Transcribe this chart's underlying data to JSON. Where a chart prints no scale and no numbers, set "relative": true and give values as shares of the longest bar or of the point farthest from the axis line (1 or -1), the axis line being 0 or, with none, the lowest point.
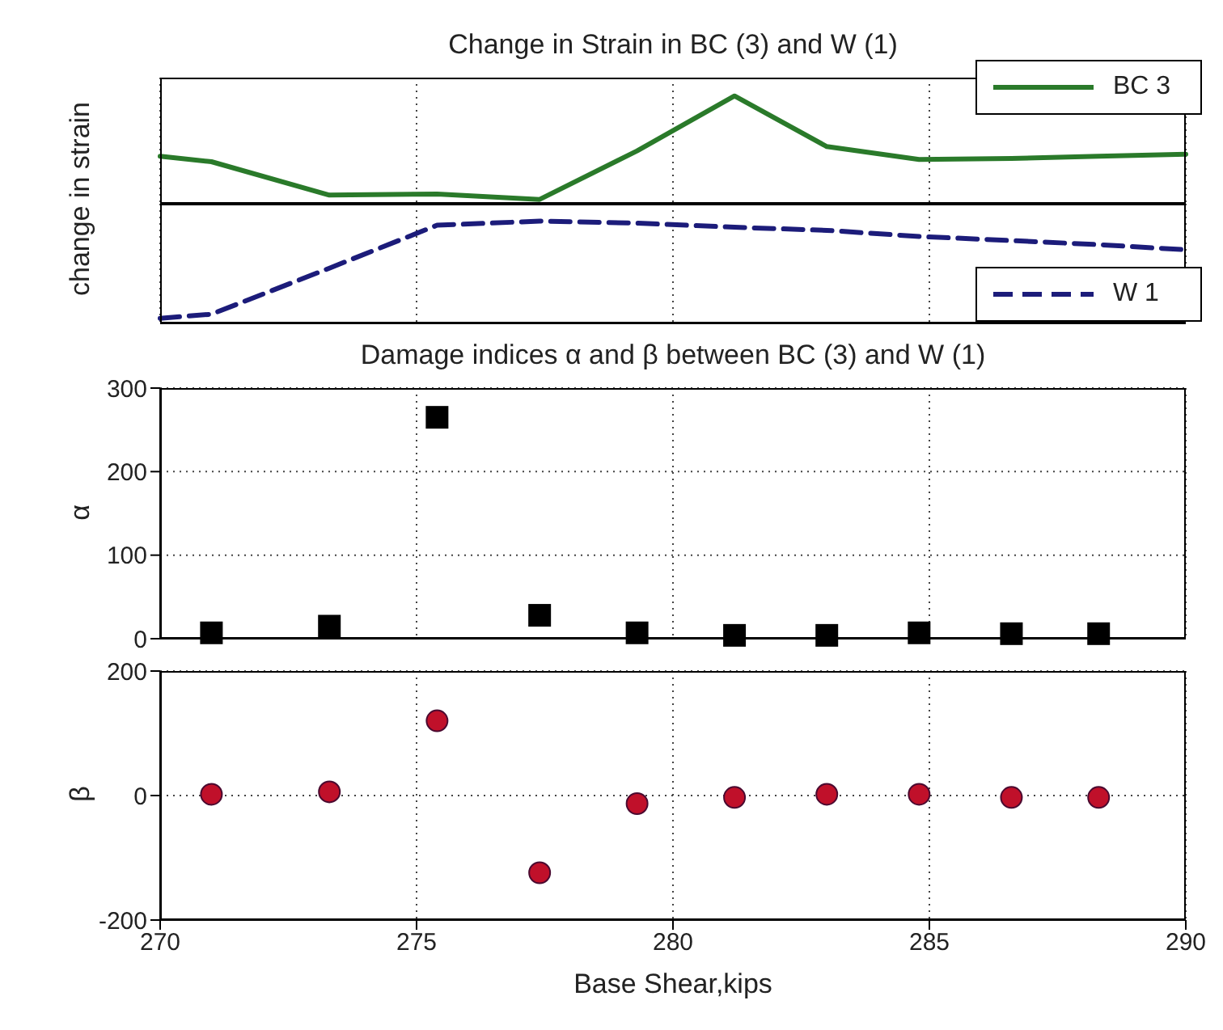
{
  "chart_data": [
    {
      "type": "line",
      "title": "Change in Strain in BC (3) and W (1)",
      "ylabel": "change in strain",
      "relative": true,
      "x": [
        270,
        271,
        273.3,
        275.4,
        277.4,
        279.3,
        281.2,
        283,
        284.8,
        286.6,
        288.3,
        290
      ],
      "xlim": [
        270,
        290
      ],
      "xticks": [
        270,
        275,
        280,
        285,
        290
      ],
      "tick_labels": false,
      "grid": "x",
      "legend": "top right",
      "marker": "none",
      "series": [
        {
          "name": "BC 3",
          "color": "#2a7a2a",
          "line_style": "solid",
          "values": [
            0.44,
            0.39,
            0.08,
            0.09,
            0.04,
            0.49,
            1.0,
            0.53,
            0.41,
            0.42,
            0.44,
            0.46
          ]
        }
      ]
    },
    {
      "type": "line",
      "relative": true,
      "x": [
        270,
        271,
        273.3,
        275.4,
        277.4,
        279.3,
        281.2,
        283,
        284.8,
        286.6,
        288.3,
        290
      ],
      "xlim": [
        270,
        290
      ],
      "xticks": [
        270,
        275,
        280,
        285,
        290
      ],
      "tick_labels": false,
      "grid": "x",
      "legend": "bottom right",
      "marker": "none",
      "series": [
        {
          "name": "W 1",
          "color": "#1c1c7a",
          "line_style": "dashed",
          "values": [
            0.05,
            0.09,
            0.54,
            0.96,
            1.0,
            0.98,
            0.94,
            0.91,
            0.85,
            0.81,
            0.77,
            0.72
          ]
        }
      ]
    },
    {
      "type": "scatter",
      "title": "Damage indices α and β between BC (3) and W (1)",
      "ylabel": "α",
      "x": [
        271,
        273.3,
        275.4,
        277.4,
        279.3,
        281.2,
        283,
        284.8,
        286.6,
        288.3
      ],
      "xlim": [
        270,
        290
      ],
      "xticks": [
        270,
        275,
        280,
        285,
        290
      ],
      "ylim": [
        0,
        300
      ],
      "yticks": [
        0,
        100,
        200,
        300
      ],
      "tick_labels": "y",
      "grid": true,
      "marker": "square",
      "series": [
        {
          "color": "#000000",
          "values": [
            7,
            15,
            265,
            28,
            7,
            4,
            4,
            7,
            6,
            6
          ]
        }
      ]
    },
    {
      "type": "scatter",
      "ylabel": "β",
      "xlabel": "Base Shear,kips",
      "x": [
        271,
        273.3,
        275.4,
        277.4,
        279.3,
        281.2,
        283,
        284.8,
        286.6,
        288.3
      ],
      "xlim": [
        270,
        290
      ],
      "xticks": [
        270,
        275,
        280,
        285,
        290
      ],
      "ylim": [
        -200,
        200
      ],
      "yticks": [
        -200,
        0,
        200
      ],
      "grid": true,
      "marker": "circle",
      "series": [
        {
          "color": "#c0102a",
          "values": [
            2,
            6,
            120,
            -124,
            -13,
            -3,
            2,
            2,
            -3,
            -3
          ]
        }
      ]
    }
  ]
}
